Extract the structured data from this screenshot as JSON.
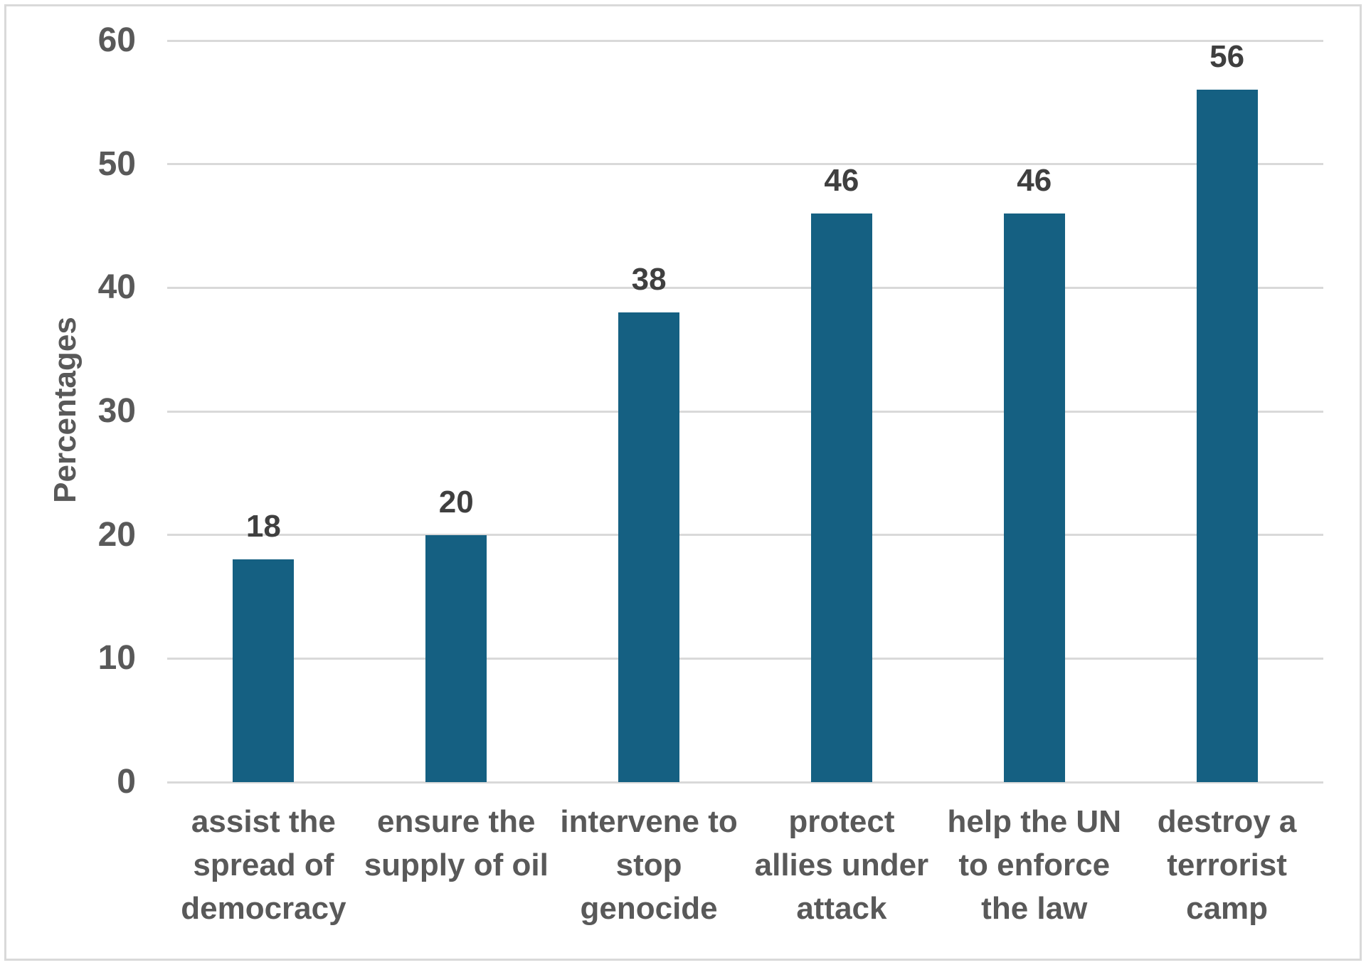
{
  "chart_data": {
    "type": "bar",
    "title": "",
    "xlabel": "",
    "ylabel": "Percentages",
    "categories": [
      "assist the\nspread of\ndemocracy",
      "ensure the\nsupply of oil",
      "intervene to\nstop\ngenocide",
      "protect\nallies under\nattack",
      "help the UN\nto enforce\nthe law",
      "destroy a\nterrorist\ncamp"
    ],
    "values": [
      18,
      20,
      38,
      46,
      46,
      56
    ],
    "value_labels": [
      "18",
      "20",
      "38",
      "46",
      "46",
      "56"
    ],
    "ylim": [
      0,
      60
    ],
    "yticks": [
      0,
      10,
      20,
      30,
      40,
      50,
      60
    ],
    "grid": true,
    "legend": "none",
    "bar_color": "#156082",
    "gridline_color": "#d9d9d9",
    "axis_text_color": "#595959",
    "value_label_color": "#3f3f3f",
    "frame_border_color": "#d9d9d9",
    "background_color": "#ffffff"
  }
}
